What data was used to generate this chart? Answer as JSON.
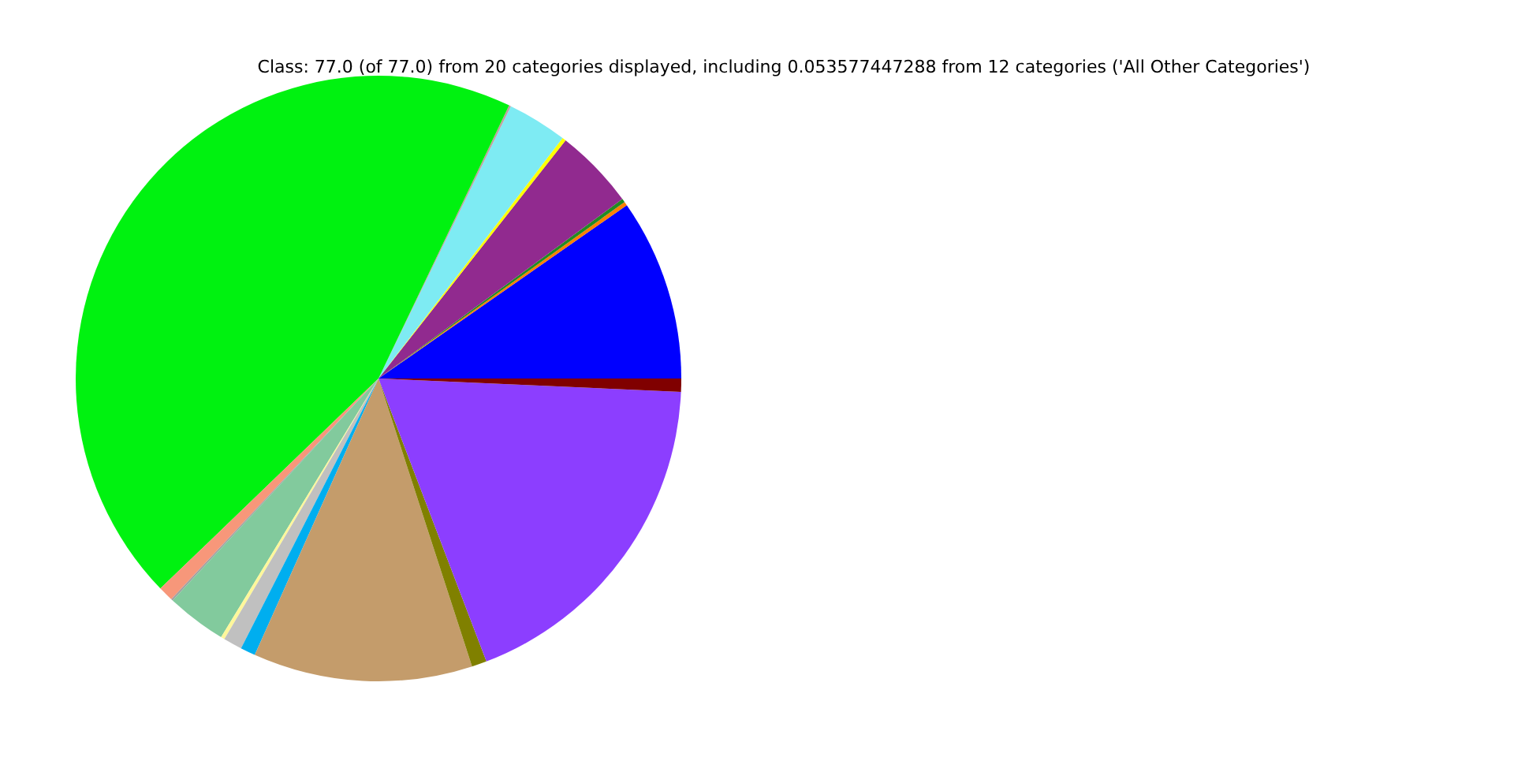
{
  "chart_data": {
    "type": "pie",
    "title": "Class: 77.0 (of 77.0) from 20 categories displayed, including 0.053577447288 from 12 categories ('All Other Categories')",
    "categories": [
      null,
      null,
      null,
      null,
      null,
      null,
      null,
      null,
      null,
      null,
      null,
      null,
      null,
      null,
      null,
      null,
      null,
      null
    ],
    "values": [
      9.7,
      0.2,
      0.2,
      4.3,
      0.2,
      3.2,
      0.1,
      44.3,
      0.8,
      0.1,
      3.2,
      0.2,
      1.0,
      0.8,
      11.7,
      0.8,
      18.5,
      0.7
    ],
    "colors": [
      "#0000ff",
      "#ff8000",
      "#228b22",
      "#912a8f",
      "#ffff00",
      "#7eebf3",
      "#c0a0a0",
      "#00f210",
      "#f7977a",
      "#a0a0a0",
      "#82ca9d",
      "#fff79a",
      "#c0c0c0",
      "#00aeef",
      "#c49c6b",
      "#808000",
      "#8c3eff",
      "#800000"
    ]
  }
}
